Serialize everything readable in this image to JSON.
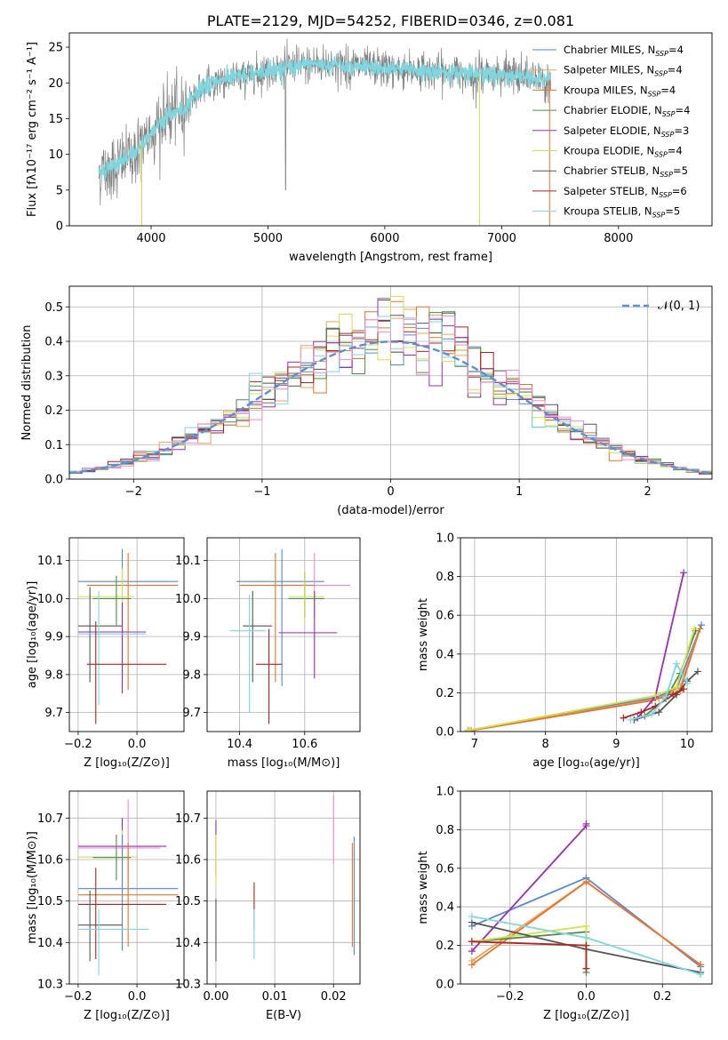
{
  "title": "PLATE=2129, MJD=54252, FIBERID=0346, z=0.081",
  "colors": {
    "Chabrier MILES": "#5a86d6",
    "Salpeter MILES": "#f0a35a",
    "Kroupa MILES": "#e8742c",
    "Chabrier ELODIE": "#4f8a4a",
    "Salpeter ELODIE": "#9a2fb6",
    "Kroupa ELODIE": "#cfe24a",
    "Chabrier STELIB": "#555555",
    "Salpeter STELIB": "#b22222",
    "Kroupa STELIB": "#7fd6de",
    "pink": "#f08cc8",
    "data": "#7f7f7f"
  },
  "chart_data": [
    {
      "id": "spectrum",
      "type": "line",
      "title": "PLATE=2129, MJD=54252, FIBERID=0346, z=0.081",
      "xlabel": "wavelength [Angstrom, rest frame]",
      "ylabel": "Flux [fλ10⁻¹⁷ erg cm⁻² s⁻¹ A⁻¹]",
      "xlim": [
        3300,
        8800
      ],
      "ylim": [
        0,
        27
      ],
      "xticks": [
        4000,
        5000,
        6000,
        7000,
        8000
      ],
      "yticks": [
        0,
        5,
        10,
        15,
        20,
        25
      ],
      "grid": false,
      "legend_position": "top-right",
      "legend": [
        {
          "base": "Chabrier MILES, N",
          "sub": "SSP",
          "tail": "=4"
        },
        {
          "base": "Salpeter MILES, N",
          "sub": "SSP",
          "tail": "=4"
        },
        {
          "base": "Kroupa MILES, N",
          "sub": "SSP",
          "tail": "=4"
        },
        {
          "base": "Chabrier ELODIE, N",
          "sub": "SSP",
          "tail": "=4"
        },
        {
          "base": "Salpeter ELODIE, N",
          "sub": "SSP",
          "tail": "=3"
        },
        {
          "base": "Kroupa ELODIE, N",
          "sub": "SSP",
          "tail": "=4"
        },
        {
          "base": "Chabrier STELIB, N",
          "sub": "SSP",
          "tail": "=5"
        },
        {
          "base": "Salpeter STELIB, N",
          "sub": "SSP",
          "tail": "=6"
        },
        {
          "base": "Kroupa STELIB, N",
          "sub": "SSP",
          "tail": "=5"
        }
      ],
      "continuum": {
        "x": [
          3550,
          3700,
          3850,
          3950,
          4050,
          4150,
          4300,
          4400,
          4600,
          4800,
          5000,
          5200,
          5400,
          5600,
          5800,
          6000,
          6200,
          6400,
          6600,
          6800,
          7000,
          7200,
          7400
        ],
        "y": [
          7.5,
          8.5,
          10.0,
          12.0,
          14.0,
          15.5,
          16.5,
          19.0,
          20.5,
          21.0,
          21.8,
          22.2,
          22.7,
          22.5,
          22.2,
          22.0,
          21.8,
          21.6,
          21.4,
          21.3,
          21.1,
          20.8,
          20.5
        ]
      }
    },
    {
      "id": "residuals",
      "type": "line",
      "xlabel": "(data-model)/error",
      "ylabel": "Normed distribution",
      "xlim": [
        -2.5,
        2.5
      ],
      "ylim": [
        0,
        0.56
      ],
      "xticks": [
        -2,
        -1,
        0,
        1,
        2
      ],
      "yticks": [
        0.0,
        0.1,
        0.2,
        0.3,
        0.4,
        0.5
      ],
      "grid": true,
      "legend_position": "top-right",
      "legend": [
        {
          "label": "𝒩(0, 1)"
        }
      ],
      "bin_width": 0.1
    },
    {
      "id": "age-vs-Z",
      "type": "scatter",
      "xlabel": "Z [log₁₀(Z/Z⊙)]",
      "ylabel": "age  [log₁₀(age/yr)]",
      "xlim": [
        -0.23,
        0.16
      ],
      "ylim": [
        9.65,
        10.16
      ],
      "xticks": [
        -0.2,
        0.0
      ],
      "yticks": [
        9.7,
        9.8,
        9.9,
        10.0,
        10.1
      ],
      "grid": true,
      "points": [
        {
          "s": "Chabrier MILES",
          "x": -0.05,
          "y": 10.045,
          "ex": [
            -0.2,
            0.14
          ],
          "ey": [
            9.77,
            10.13
          ]
        },
        {
          "s": "Kroupa MILES",
          "x": -0.03,
          "y": 10.035,
          "ex": [
            -0.17,
            0.14
          ],
          "ey": [
            9.76,
            10.12
          ]
        },
        {
          "s": "Kroupa ELODIE",
          "x": -0.05,
          "y": 10.005,
          "ex": [
            -0.2,
            -0.01
          ],
          "ey": [
            9.76,
            10.08
          ]
        },
        {
          "s": "Chabrier ELODIE",
          "x": -0.07,
          "y": 10.0,
          "ex": [
            -0.15,
            -0.02
          ],
          "ey": [
            9.93,
            10.06
          ]
        },
        {
          "s": "Chabrier STELIB",
          "x": -0.16,
          "y": 9.928,
          "ex": [
            -0.2,
            -0.05
          ],
          "ey": [
            9.78,
            10.03
          ]
        },
        {
          "s": "Salpeter ELODIE",
          "x": -0.05,
          "y": 9.912,
          "ex": [
            -0.2,
            0.03
          ],
          "ey": [
            9.75,
            9.99
          ]
        },
        {
          "s": "Kroupa STELIB",
          "x": -0.13,
          "y": 9.907,
          "ex": [
            -0.2,
            0.03
          ],
          "ey": [
            9.72,
            10.02
          ]
        },
        {
          "s": "Salpeter STELIB",
          "x": -0.14,
          "y": 9.827,
          "ex": [
            -0.17,
            0.1
          ],
          "ey": [
            9.67,
            9.94
          ]
        }
      ]
    },
    {
      "id": "age-vs-mass",
      "type": "scatter",
      "xlabel": "mass [log₁₀(M/M⊙)]",
      "ylabel": "",
      "xlim": [
        10.3,
        10.77
      ],
      "ylim": [
        9.65,
        10.16
      ],
      "xticks": [
        10.4,
        10.6
      ],
      "yticks": [
        9.7,
        9.8,
        9.9,
        10.0,
        10.1
      ],
      "grid": true,
      "points": [
        {
          "s": "Chabrier MILES",
          "x": 10.53,
          "y": 10.045,
          "ex": [
            10.39,
            10.66
          ],
          "ey": [
            9.77,
            10.13
          ]
        },
        {
          "s": "pink",
          "x": 10.63,
          "y": 10.035,
          "ex": [
            10.54,
            10.74
          ],
          "ey": [
            9.95,
            10.12
          ]
        },
        {
          "s": "Kroupa MILES",
          "x": 10.51,
          "y": 10.035,
          "ex": [
            10.4,
            10.63
          ],
          "ey": [
            9.78,
            10.12
          ]
        },
        {
          "s": "Chabrier ELODIE",
          "x": 10.6,
          "y": 10.0,
          "ex": [
            10.55,
            10.66
          ],
          "ey": [
            9.95,
            10.07
          ]
        },
        {
          "s": "Kroupa ELODIE",
          "x": 10.6,
          "y": 10.005,
          "ex": [
            10.55,
            10.66
          ],
          "ey": [
            9.94,
            10.07
          ]
        },
        {
          "s": "Chabrier STELIB",
          "x": 10.44,
          "y": 9.928,
          "ex": [
            10.41,
            10.5
          ],
          "ey": [
            9.78,
            10.02
          ]
        },
        {
          "s": "Kroupa STELIB",
          "x": 10.43,
          "y": 9.915,
          "ex": [
            10.37,
            10.48
          ],
          "ey": [
            9.7,
            10.01
          ]
        },
        {
          "s": "Salpeter ELODIE",
          "x": 10.63,
          "y": 9.91,
          "ex": [
            10.52,
            10.7
          ],
          "ey": [
            9.79,
            10.02
          ]
        },
        {
          "s": "Salpeter STELIB",
          "x": 10.49,
          "y": 9.827,
          "ex": [
            10.45,
            10.53
          ],
          "ey": [
            9.67,
            9.92
          ]
        }
      ]
    },
    {
      "id": "weight-vs-age",
      "type": "line",
      "xlabel": "age  [log₁₀(age/yr)]",
      "ylabel": "mass weight",
      "xlim": [
        6.8,
        10.35
      ],
      "ylim": [
        0,
        1.0
      ],
      "xticks": [
        7,
        8,
        9,
        10
      ],
      "yticks": [
        0.0,
        0.2,
        0.4,
        0.6,
        0.8,
        1.0
      ],
      "grid": true,
      "series": [
        {
          "name": "Chabrier MILES",
          "x": [
            6.9,
            9.55,
            9.85,
            10.2
          ],
          "y": [
            0.005,
            0.175,
            0.22,
            0.55
          ]
        },
        {
          "name": "Salpeter MILES",
          "x": [
            6.92,
            9.6,
            9.9,
            10.18
          ],
          "y": [
            0.005,
            0.17,
            0.23,
            0.53
          ]
        },
        {
          "name": "Kroupa MILES",
          "x": [
            6.95,
            9.5,
            9.9,
            10.18
          ],
          "y": [
            0.005,
            0.16,
            0.21,
            0.53
          ]
        },
        {
          "name": "Chabrier ELODIE",
          "x": [
            9.4,
            9.7,
            9.9,
            10.12
          ],
          "y": [
            0.08,
            0.17,
            0.3,
            0.52
          ]
        },
        {
          "name": "Salpeter ELODIE",
          "x": [
            9.3,
            9.55,
            9.95
          ],
          "y": [
            0.07,
            0.18,
            0.82
          ]
        },
        {
          "name": "Kroupa ELODIE",
          "x": [
            6.9,
            9.55,
            9.85,
            10.1
          ],
          "y": [
            0.005,
            0.185,
            0.23,
            0.53
          ]
        },
        {
          "name": "Chabrier STELIB",
          "x": [
            9.25,
            9.6,
            9.85,
            10.0,
            10.15
          ],
          "y": [
            0.06,
            0.1,
            0.19,
            0.26,
            0.31
          ]
        },
        {
          "name": "Salpeter STELIB",
          "x": [
            9.1,
            9.35,
            9.55,
            9.8,
            9.95
          ],
          "y": [
            0.07,
            0.1,
            0.13,
            0.19,
            0.22
          ]
        },
        {
          "name": "Kroupa STELIB",
          "x": [
            9.2,
            9.5,
            9.7,
            9.85,
            10.0
          ],
          "y": [
            0.06,
            0.09,
            0.18,
            0.35,
            0.25
          ]
        }
      ]
    },
    {
      "id": "mass-vs-Z",
      "type": "scatter",
      "xlabel": "Z [log₁₀(Z/Z⊙)]",
      "ylabel": "mass [log₁₀(M/M⊙)]",
      "xlim": [
        -0.23,
        0.16
      ],
      "ylim": [
        10.3,
        10.765
      ],
      "xticks": [
        -0.2,
        0.0
      ],
      "yticks": [
        10.3,
        10.4,
        10.5,
        10.6,
        10.7
      ],
      "grid": true,
      "points": [
        {
          "s": "pink",
          "x": -0.03,
          "y": 10.628,
          "ex": [
            -0.2,
            0.08
          ],
          "ey": [
            10.52,
            10.745
          ]
        },
        {
          "s": "Salpeter ELODIE",
          "x": -0.05,
          "y": 10.632,
          "ex": [
            -0.2,
            0.1
          ],
          "ey": [
            10.55,
            10.7
          ]
        },
        {
          "s": "Kroupa ELODIE",
          "x": -0.05,
          "y": 10.606,
          "ex": [
            -0.2,
            0.0
          ],
          "ey": [
            10.54,
            10.67
          ]
        },
        {
          "s": "Chabrier ELODIE",
          "x": -0.07,
          "y": 10.605,
          "ex": [
            -0.15,
            -0.02
          ],
          "ey": [
            10.55,
            10.66
          ]
        },
        {
          "s": "Chabrier MILES",
          "x": -0.05,
          "y": 10.53,
          "ex": [
            -0.2,
            0.14
          ],
          "ey": [
            10.38,
            10.66
          ]
        },
        {
          "s": "Kroupa MILES",
          "x": -0.03,
          "y": 10.515,
          "ex": [
            -0.2,
            0.14
          ],
          "ey": [
            10.39,
            10.64
          ]
        },
        {
          "s": "Salpeter STELIB",
          "x": -0.14,
          "y": 10.492,
          "ex": [
            -0.2,
            0.1
          ],
          "ey": [
            10.36,
            10.58
          ]
        },
        {
          "s": "Chabrier STELIB",
          "x": -0.16,
          "y": 10.442,
          "ex": [
            -0.2,
            -0.05
          ],
          "ey": [
            10.355,
            10.525
          ]
        },
        {
          "s": "Kroupa STELIB",
          "x": -0.13,
          "y": 10.432,
          "ex": [
            -0.2,
            0.04
          ],
          "ey": [
            10.32,
            10.48
          ]
        }
      ]
    },
    {
      "id": "mass-vs-EBV",
      "type": "scatter",
      "xlabel": "E(B-V)",
      "ylabel": "",
      "xlim": [
        -0.0015,
        0.0245
      ],
      "ylim": [
        10.3,
        10.765
      ],
      "xticks": [
        0.0,
        0.01,
        0.02
      ],
      "yticks": [
        10.3,
        10.4,
        10.5,
        10.6,
        10.7
      ],
      "grid": true,
      "points": [
        {
          "s": "Salpeter ELODIE",
          "x": 0.0,
          "y": 10.63,
          "ey": [
            10.56,
            10.695
          ]
        },
        {
          "s": "Kroupa ELODIE",
          "x": 0.0,
          "y": 10.6,
          "ey": [
            10.54,
            10.66
          ]
        },
        {
          "s": "Chabrier STELIB",
          "x": 0.0,
          "y": 10.43,
          "ey": [
            10.355,
            10.505
          ]
        },
        {
          "s": "Salpeter STELIB",
          "x": 0.0065,
          "y": 10.49,
          "ey": [
            10.43,
            10.545
          ]
        },
        {
          "s": "Kroupa STELIB",
          "x": 0.0065,
          "y": 10.43,
          "ey": [
            10.36,
            10.48
          ]
        },
        {
          "s": "pink",
          "x": 0.02,
          "y": 10.67,
          "ey": [
            10.59,
            10.755
          ]
        },
        {
          "s": "Kroupa MILES",
          "x": 0.0232,
          "y": 10.52,
          "ey": [
            10.39,
            10.64
          ]
        },
        {
          "s": "Chabrier MILES",
          "x": 0.0235,
          "y": 10.53,
          "ey": [
            10.37,
            10.655
          ]
        }
      ]
    },
    {
      "id": "weight-vs-Z",
      "type": "line",
      "xlabel": "Z [log₁₀(Z/Z⊙)]",
      "ylabel": "mass weight",
      "xlim": [
        -0.33,
        0.33
      ],
      "ylim": [
        0,
        1.0
      ],
      "xticks": [
        -0.2,
        0.0,
        0.2
      ],
      "yticks": [
        0.0,
        0.2,
        0.4,
        0.6,
        0.8,
        1.0
      ],
      "grid": true,
      "series": [
        {
          "name": "Chabrier MILES",
          "x": [
            -0.3,
            0.0,
            0.3
          ],
          "y": [
            0.3,
            0.55,
            0.09
          ]
        },
        {
          "name": "Salpeter MILES",
          "x": [
            -0.3,
            0.0,
            0.3
          ],
          "y": [
            0.12,
            0.53,
            0.1
          ]
        },
        {
          "name": "Kroupa MILES",
          "x": [
            -0.3,
            0.0,
            0.3
          ],
          "y": [
            0.1,
            0.53,
            0.1
          ]
        },
        {
          "name": "Chabrier ELODIE",
          "x": [
            -0.3,
            0.0,
            0.0
          ],
          "y": [
            0.22,
            0.27,
            0.06
          ]
        },
        {
          "name": "Salpeter ELODIE",
          "x": [
            -0.3,
            0.0,
            0.0
          ],
          "y": [
            0.17,
            0.82,
            0.83
          ]
        },
        {
          "name": "Kroupa ELODIE",
          "x": [
            -0.3,
            0.0,
            0.0
          ],
          "y": [
            0.22,
            0.3,
            0.08
          ]
        },
        {
          "name": "Chabrier STELIB",
          "x": [
            -0.3,
            0.0,
            0.3
          ],
          "y": [
            0.32,
            0.18,
            0.06
          ]
        },
        {
          "name": "Salpeter STELIB",
          "x": [
            -0.3,
            0.0,
            0.0
          ],
          "y": [
            0.22,
            0.2,
            0.08
          ]
        },
        {
          "name": "Kroupa STELIB",
          "x": [
            -0.3,
            0.0,
            0.3
          ],
          "y": [
            0.35,
            0.24,
            0.05
          ]
        }
      ]
    }
  ]
}
